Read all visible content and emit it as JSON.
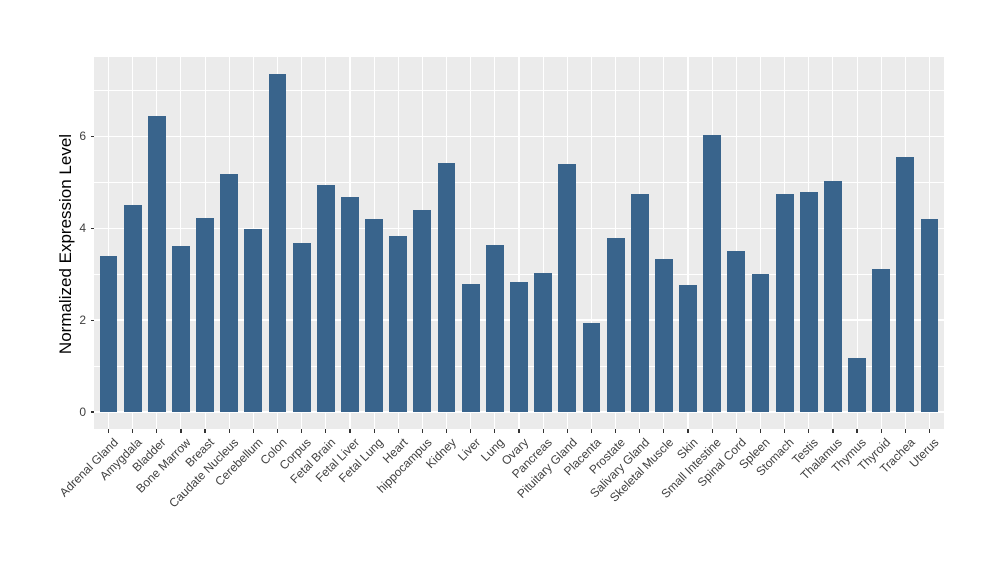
{
  "colors": {
    "background": "#FFFFFF",
    "panel_background": "#EBEBEB",
    "grid": "#FFFFFF",
    "bar_fill": "#39648C",
    "axis_text": "#404040",
    "axis_title": "#000000",
    "tick_marks": "#333333"
  },
  "chart_data": {
    "type": "bar",
    "title": "",
    "xlabel": "",
    "ylabel": "Normalized Expression Level",
    "legend": false,
    "grid": true,
    "panel_style": "ggplot-gray",
    "x_label_rotation_deg": 45,
    "ylim": [
      -0.368,
      7.728
    ],
    "yticks_major": [
      0,
      2,
      4,
      6
    ],
    "yticks_minor": [
      1,
      3,
      5,
      7
    ],
    "categories": [
      "Adrenal Gland",
      "Amygdala",
      "Bladder",
      "Bone Marrow",
      "Breast",
      "Caudate Nucleus",
      "Cerebellum",
      "Colon",
      "Corpus",
      "Fetal Brain",
      "Fetal Liver",
      "Fetal Lung",
      "Heart",
      "hippocampus",
      "Kidney",
      "Liver",
      "Lung",
      "Ovary",
      "Pancreas",
      "Pituitary Gland",
      "Placenta",
      "Prostate",
      "Salivary Gland",
      "Skeletal Muscle",
      "Skin",
      "Small Intestine",
      "Spinal Cord",
      "Spleen",
      "Stomach",
      "Testis",
      "Thalamus",
      "Thymus",
      "Thyroid",
      "Trachea",
      "Uterus"
    ],
    "values": [
      3.4,
      4.5,
      6.45,
      3.61,
      4.22,
      5.18,
      3.99,
      7.36,
      3.68,
      4.95,
      4.69,
      4.2,
      3.84,
      4.39,
      5.43,
      2.79,
      3.64,
      2.84,
      3.02,
      5.41,
      1.94,
      3.8,
      4.75,
      3.34,
      2.76,
      6.02,
      3.5,
      3.0,
      4.74,
      4.8,
      5.03,
      1.18,
      3.12,
      5.56,
      4.21
    ]
  }
}
